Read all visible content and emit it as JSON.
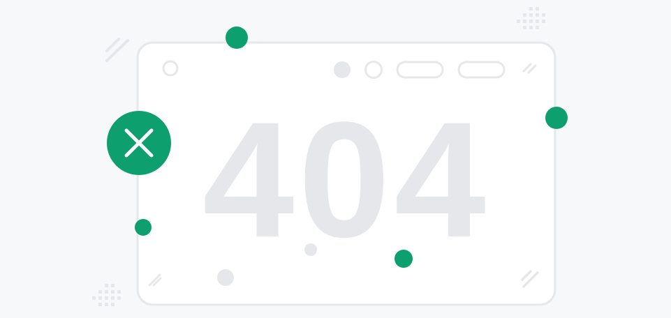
{
  "error": {
    "code": "404",
    "status_icon": "close-icon"
  },
  "colors": {
    "accent": "#0E9F6E",
    "card_border": "#E5E7EB",
    "code_text": "#E6E7EA",
    "decor": "#E5E7EB",
    "background": "#F7F8FA",
    "card_fill": "#FFFFFF"
  },
  "window": {
    "controls": [
      "dot-icon",
      "circle-icon",
      "pill-icon",
      "pill-icon"
    ]
  }
}
